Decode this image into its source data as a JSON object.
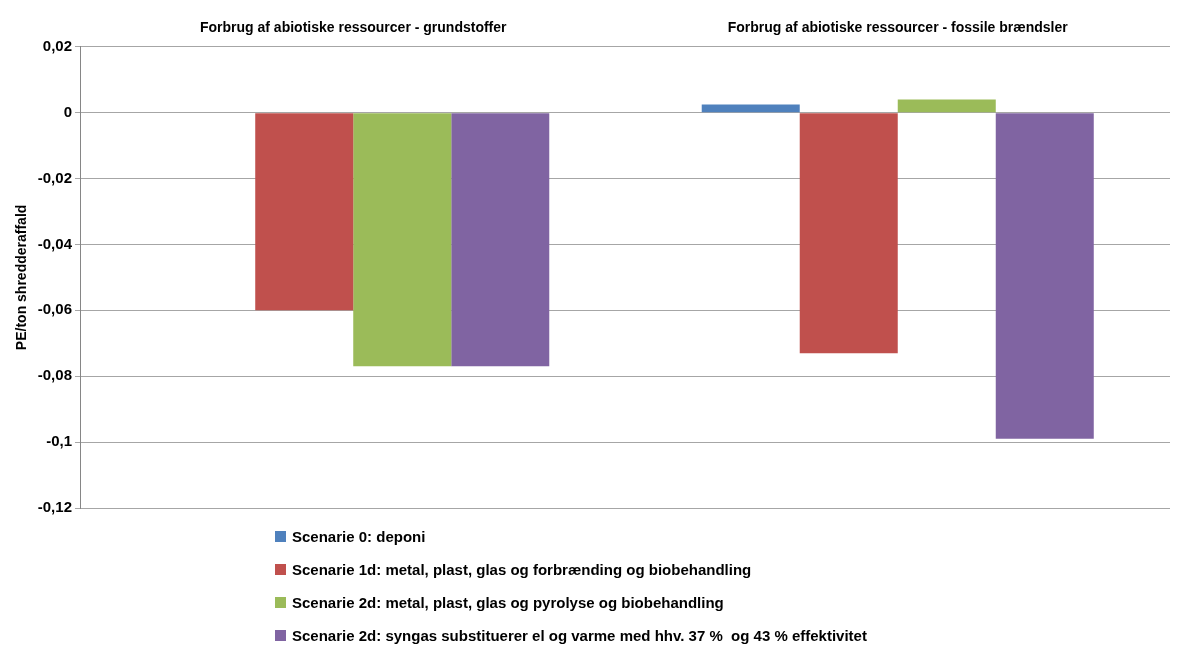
{
  "chart_data": {
    "type": "bar",
    "ylabel": "PE/ton shredderaffald",
    "categories": [
      "Forbrug af abiotiske ressourcer - grundstoffer",
      "Forbrug af abiotiske ressourcer - fossile brændsler"
    ],
    "series": [
      {
        "name": "Scenarie 0: deponi",
        "color": "#4f81bd",
        "values": [
          0,
          0.0025
        ]
      },
      {
        "name": "Scenarie 1d: metal, plast, glas og forbrænding og biobehandling",
        "color": "#c0504d",
        "values": [
          -0.06,
          -0.073
        ]
      },
      {
        "name": "Scenarie 2d: metal, plast, glas og pyrolyse og biobehandling",
        "color": "#9bbb59",
        "values": [
          -0.077,
          0.004
        ]
      },
      {
        "name": "Scenarie 2d: syngas substituerer el og varme med hhv. 37 %  og 43 % effektivitet",
        "color": "#8064a2",
        "values": [
          -0.077,
          -0.099
        ]
      }
    ],
    "ylim": [
      -0.12,
      0.02
    ],
    "yticks": [
      {
        "value": -0.12,
        "label": "-0,12"
      },
      {
        "value": -0.1,
        "label": "-0,1"
      },
      {
        "value": -0.08,
        "label": "-0,08"
      },
      {
        "value": -0.06,
        "label": "-0,06"
      },
      {
        "value": -0.04,
        "label": "-0,04"
      },
      {
        "value": -0.02,
        "label": "-0,02"
      },
      {
        "value": 0,
        "label": "0"
      },
      {
        "value": 0.02,
        "label": "0,02"
      }
    ],
    "grid": "y",
    "legend": "bottom"
  }
}
